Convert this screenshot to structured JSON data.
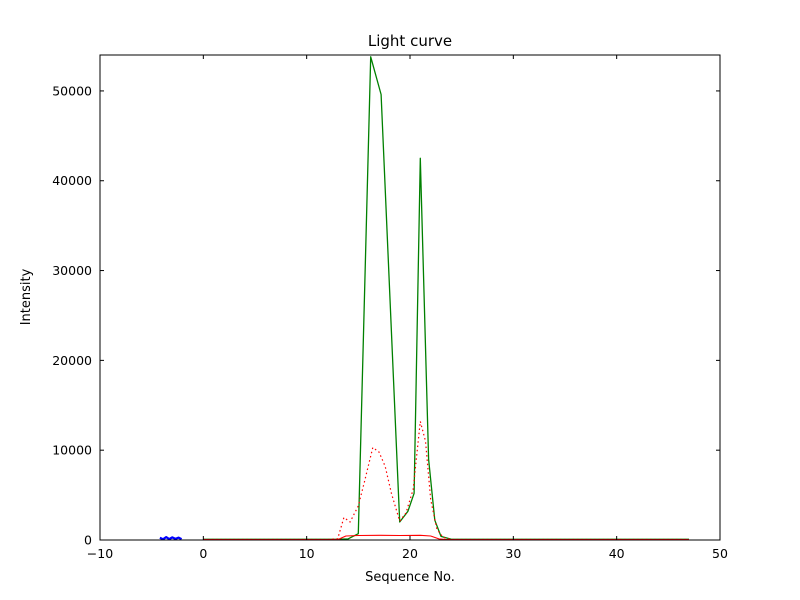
{
  "chart_data": {
    "type": "line",
    "title": "Light curve",
    "xlabel": "Sequence No.",
    "ylabel": "Intensity",
    "xlim": [
      -10,
      50
    ],
    "ylim": [
      0,
      54000
    ],
    "grid": false,
    "legend": "none",
    "background_color": "#ffffff",
    "axes_color": "#000000",
    "xticks": {
      "values": [
        -10,
        0,
        10,
        20,
        30,
        40,
        50
      ],
      "labels": [
        "−10",
        "0",
        "10",
        "20",
        "30",
        "40",
        "50"
      ]
    },
    "yticks": {
      "values": [
        0,
        10000,
        20000,
        30000,
        40000,
        50000
      ],
      "labels": [
        "0",
        "10000",
        "20000",
        "30000",
        "40000",
        "50000"
      ]
    },
    "series": [
      {
        "name": "main-intensity",
        "color": "#008000",
        "style": "solid",
        "width": 1.3,
        "points": [
          [
            0,
            80
          ],
          [
            3,
            80
          ],
          [
            6,
            80
          ],
          [
            9,
            80
          ],
          [
            12,
            80
          ],
          [
            13,
            80
          ],
          [
            14,
            120
          ],
          [
            15,
            700
          ],
          [
            16.2,
            53800
          ],
          [
            17.2,
            49600
          ],
          [
            19,
            2000
          ],
          [
            19.8,
            3200
          ],
          [
            20.4,
            5200
          ],
          [
            21,
            42500
          ],
          [
            21.8,
            9000
          ],
          [
            22.4,
            2200
          ],
          [
            23,
            400
          ],
          [
            24,
            80
          ],
          [
            28,
            80
          ],
          [
            34,
            80
          ],
          [
            40,
            80
          ],
          [
            47,
            80
          ]
        ]
      },
      {
        "name": "reference-intensity",
        "color": "#ff0000",
        "style": "dotted",
        "width": 1.2,
        "points": [
          [
            0,
            60
          ],
          [
            6,
            60
          ],
          [
            12,
            60
          ],
          [
            13,
            150
          ],
          [
            13.6,
            2500
          ],
          [
            14.2,
            2000
          ],
          [
            15,
            3800
          ],
          [
            15.6,
            6500
          ],
          [
            16.4,
            10300
          ],
          [
            17,
            9800
          ],
          [
            17.6,
            8200
          ],
          [
            18.2,
            5200
          ],
          [
            19,
            2100
          ],
          [
            19.6,
            3000
          ],
          [
            20.3,
            5600
          ],
          [
            21,
            13200
          ],
          [
            21.5,
            11000
          ],
          [
            22,
            4500
          ],
          [
            22.6,
            1200
          ],
          [
            23.2,
            300
          ],
          [
            24,
            60
          ],
          [
            30,
            60
          ],
          [
            40,
            60
          ],
          [
            47,
            60
          ]
        ]
      },
      {
        "name": "background-level",
        "color": "#ff0000",
        "style": "solid",
        "width": 1.1,
        "points": [
          [
            0,
            40
          ],
          [
            6,
            40
          ],
          [
            13,
            40
          ],
          [
            13.8,
            450
          ],
          [
            15,
            500
          ],
          [
            17,
            520
          ],
          [
            19,
            500
          ],
          [
            21,
            520
          ],
          [
            22,
            450
          ],
          [
            22.8,
            120
          ],
          [
            23.5,
            40
          ],
          [
            30,
            40
          ],
          [
            40,
            40
          ],
          [
            47,
            40
          ]
        ]
      },
      {
        "name": "pre-sequence-marker",
        "color": "#0000ff",
        "style": "solid",
        "width": 2.2,
        "points": [
          [
            -4.2,
            250
          ],
          [
            -3.9,
            80
          ],
          [
            -3.6,
            320
          ],
          [
            -3.3,
            100
          ],
          [
            -3.0,
            290
          ],
          [
            -2.7,
            120
          ],
          [
            -2.4,
            270
          ],
          [
            -2.1,
            100
          ]
        ]
      }
    ]
  }
}
